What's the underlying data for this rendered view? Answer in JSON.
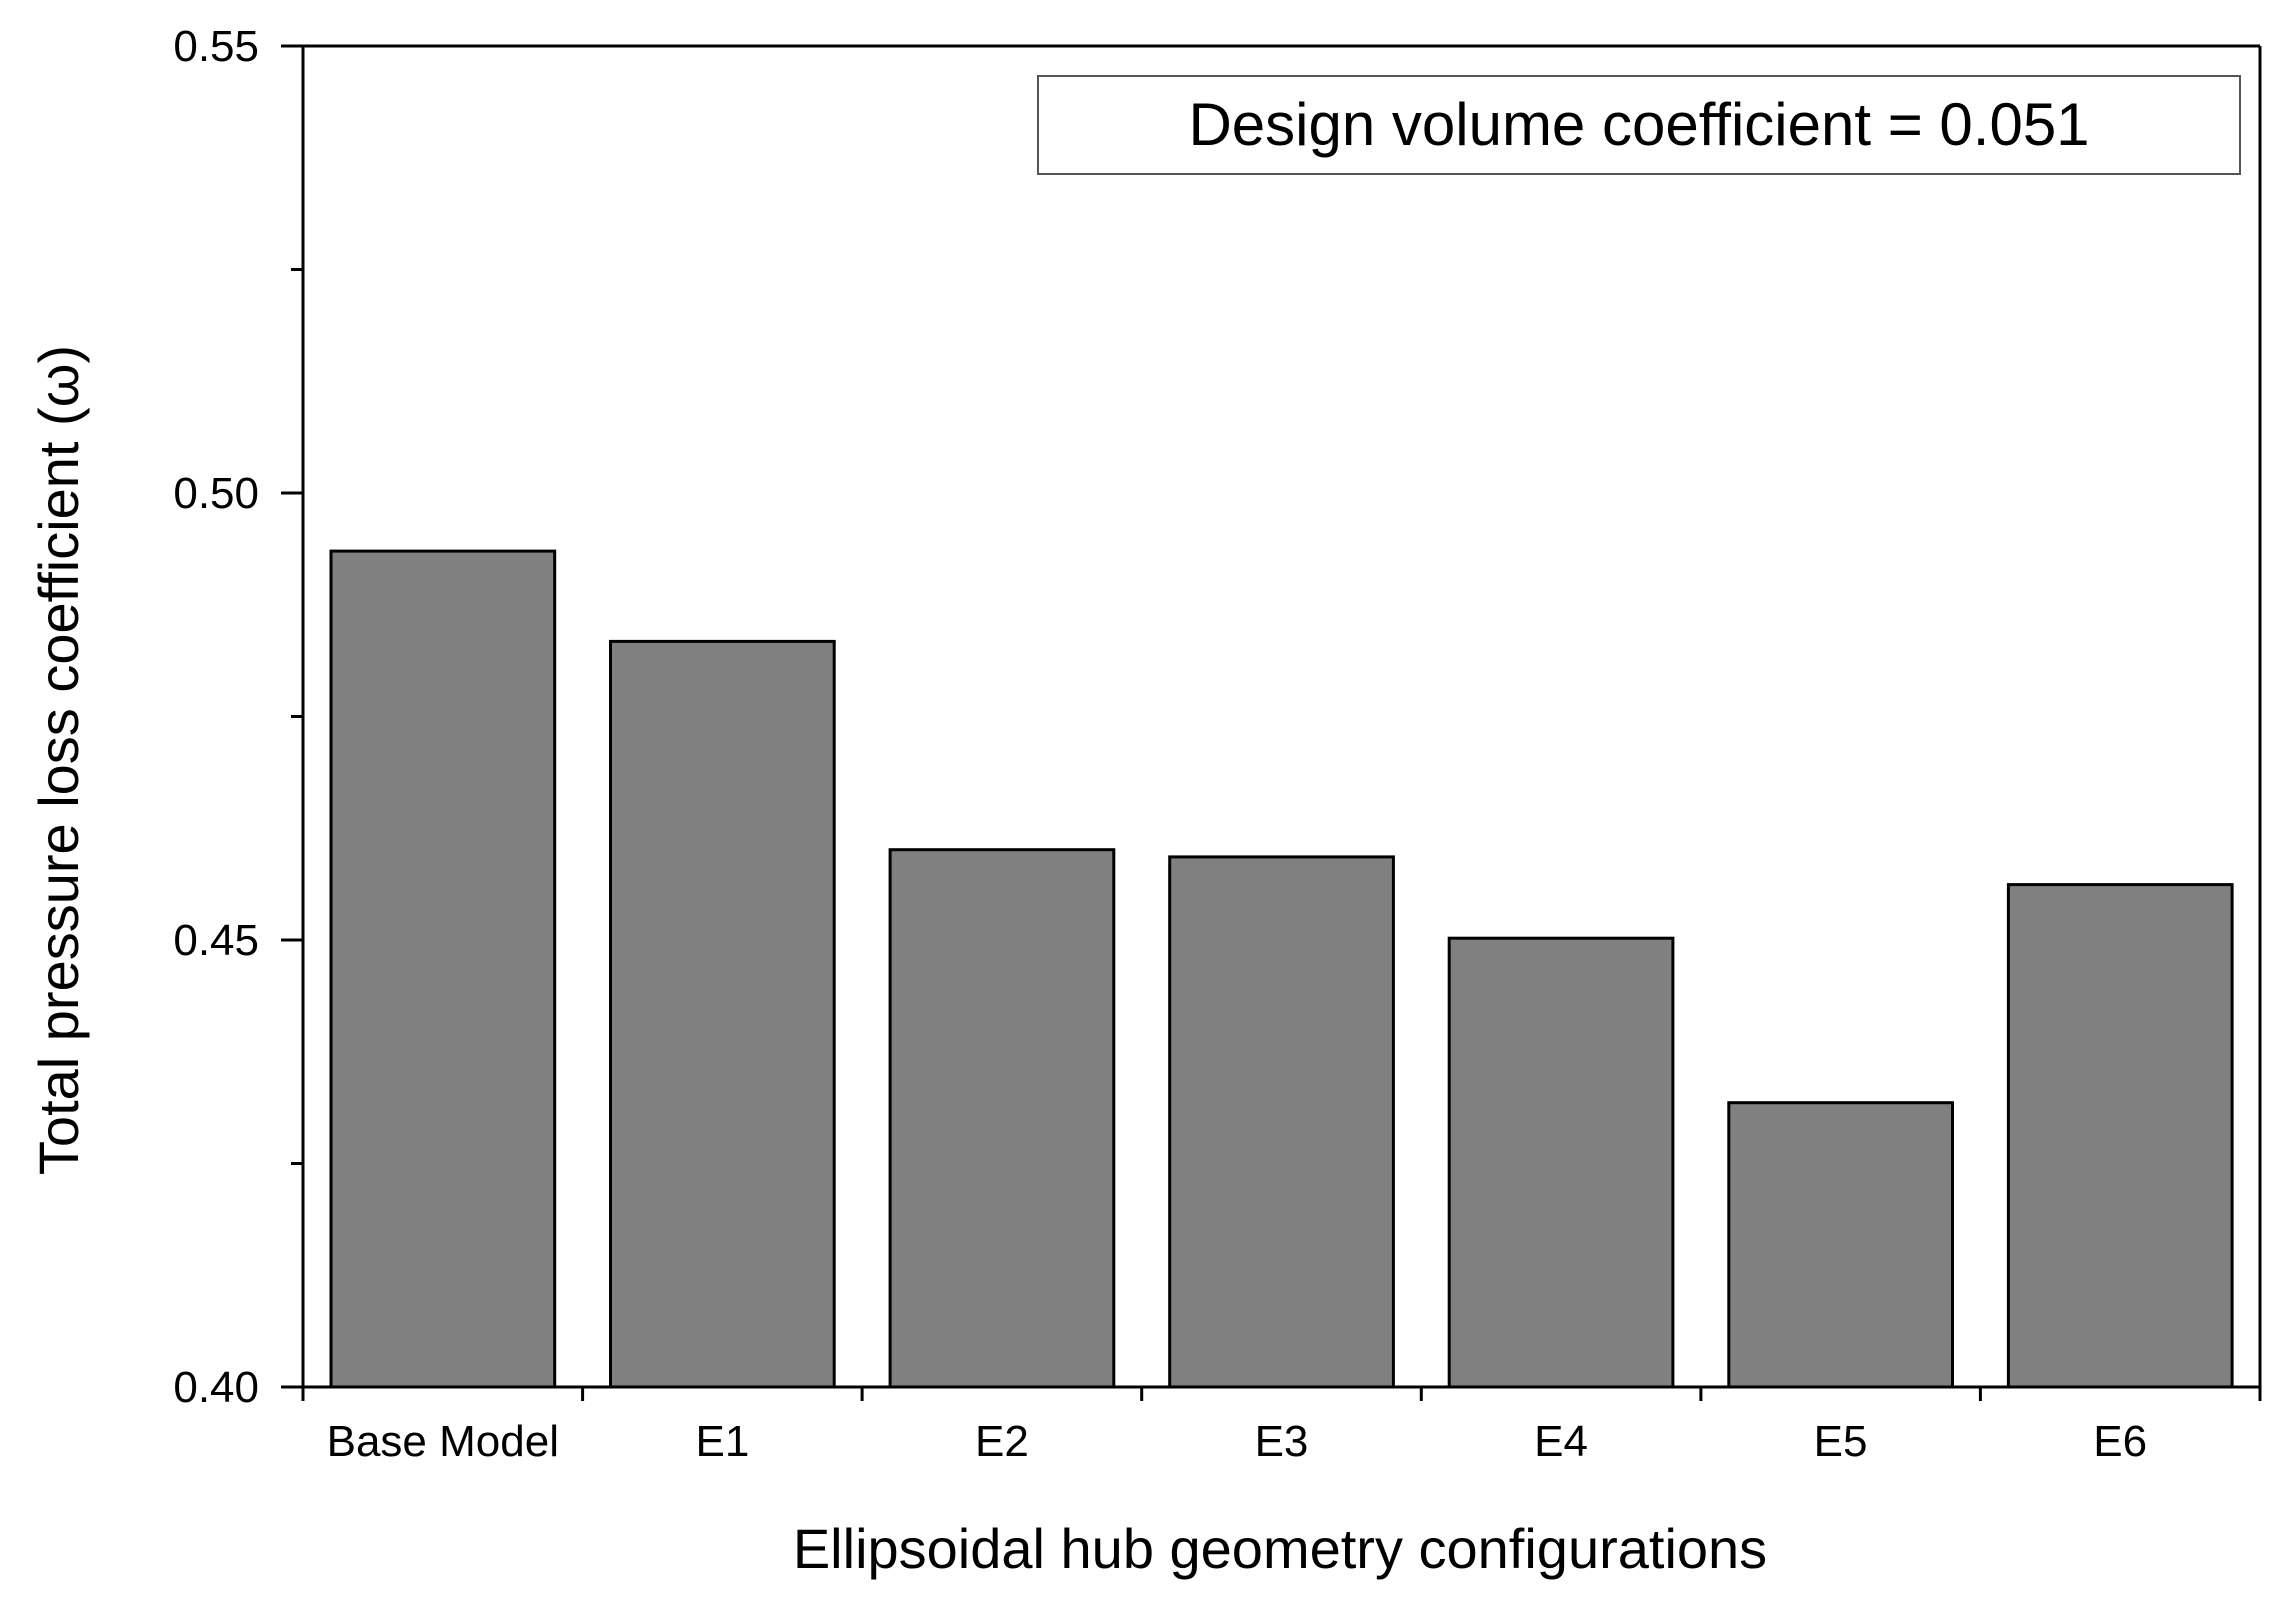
{
  "chart_data": {
    "type": "bar",
    "title": "",
    "xlabel": "Ellipsoidal hub geometry configurations",
    "ylabel": "Total pressure loss coefficient (ω)",
    "categories": [
      "Base Model",
      "E1",
      "E2",
      "E3",
      "E4",
      "E5",
      "E6"
    ],
    "values": [
      0.4935,
      0.4834,
      0.4601,
      0.4593,
      0.4502,
      0.4318,
      0.4562
    ],
    "ylim": [
      0.4,
      0.55
    ],
    "yticks": [
      "0.40",
      "0.45",
      "0.50",
      "0.55"
    ],
    "annotation": "Design volume coefficient = 0.051",
    "bar_color": "#808080",
    "grid": false
  }
}
